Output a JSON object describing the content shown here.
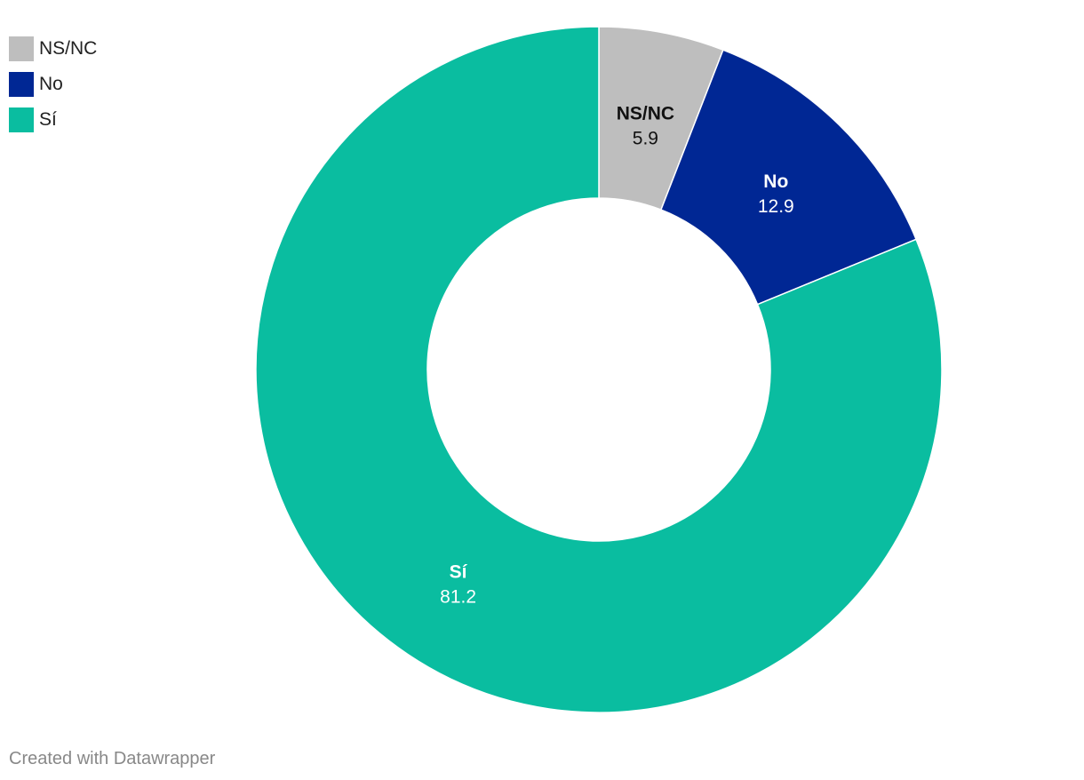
{
  "chart_data": {
    "type": "pie",
    "variant": "donut",
    "title": "",
    "legend_position": "top-left",
    "categories": [
      "NS/NC",
      "No",
      "Sí"
    ],
    "values": [
      5.9,
      12.9,
      81.2
    ],
    "value_labels": [
      "5.9",
      "12.9",
      "81.2"
    ],
    "colors": [
      "#bebebe",
      "#002794",
      "#0abda0"
    ],
    "label_colors": [
      "#111111",
      "#ffffff",
      "#ffffff"
    ]
  },
  "footer": {
    "credit": "Created with Datawrapper"
  }
}
